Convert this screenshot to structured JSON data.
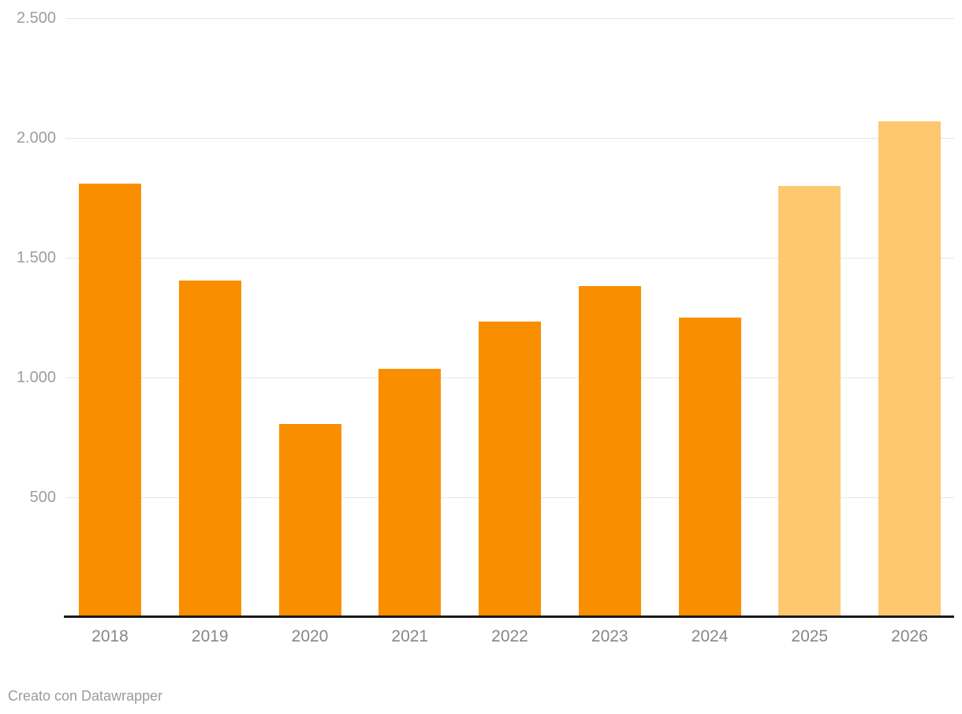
{
  "chart_data": {
    "type": "bar",
    "title": "",
    "xlabel": "",
    "ylabel": "",
    "categories": [
      "2018",
      "2019",
      "2020",
      "2021",
      "2022",
      "2023",
      "2024",
      "2025",
      "2026"
    ],
    "values": [
      1810,
      1405,
      805,
      1035,
      1235,
      1380,
      1250,
      1800,
      2070
    ],
    "bar_styles": [
      "actual",
      "actual",
      "actual",
      "actual",
      "actual",
      "actual",
      "actual",
      "forecast",
      "forecast"
    ],
    "colors": {
      "actual": "#F98F00",
      "forecast": "#FDC870"
    },
    "yticks": [
      {
        "value": 500,
        "label": "500"
      },
      {
        "value": 1000,
        "label": "1.000"
      },
      {
        "value": 1500,
        "label": "1.500"
      },
      {
        "value": 2000,
        "label": "2.000"
      },
      {
        "value": 2500,
        "label": "2.500"
      }
    ],
    "ylim": [
      0,
      2500
    ],
    "grid": "horizontal",
    "legend": "none"
  },
  "footer": {
    "credit": "Creato con Datawrapper"
  }
}
